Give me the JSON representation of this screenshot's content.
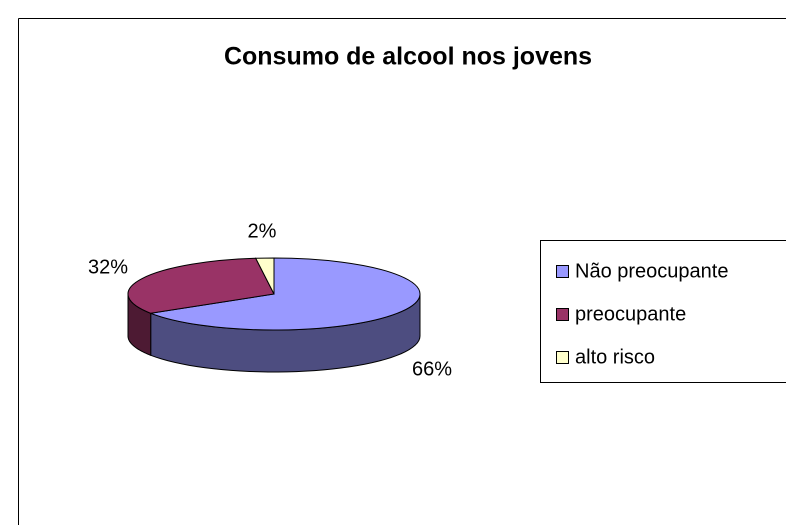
{
  "chart_data": {
    "type": "pie",
    "title": "Consumo de alcool nos jovens",
    "categories": [
      "Não preocupante",
      "preocupante",
      "alto risco"
    ],
    "values": [
      66,
      32,
      2
    ],
    "value_labels": [
      "66%",
      "32%",
      "2%"
    ],
    "colors": [
      "#9999FF",
      "#993366",
      "#FFFFCC"
    ],
    "legend": "right"
  }
}
